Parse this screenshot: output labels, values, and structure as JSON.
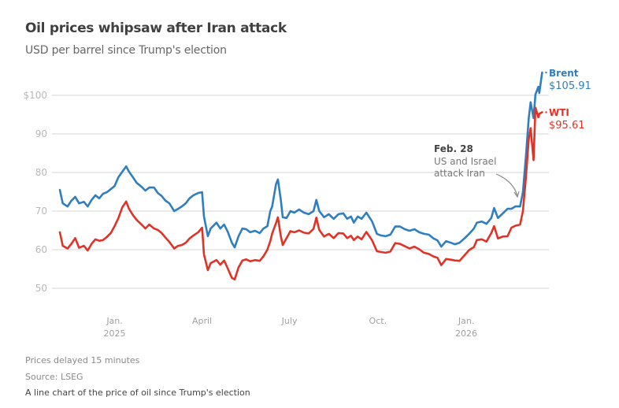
{
  "header": {
    "title": "Oil prices whipsaw after Iran attack",
    "subtitle": "USD per barrel since Trump's election"
  },
  "footer": {
    "note": "Prices delayed 15 minutes",
    "source": "Source: LSEG",
    "alt_text": "A line chart of the price of oil since Trump's election"
  },
  "chart_data": {
    "type": "line",
    "title": "Oil prices whipsaw after Iran attack",
    "subtitle": "USD per barrel since Trump's election",
    "xlabel": "",
    "ylabel": "USD per barrel",
    "ylim": [
      50,
      100
    ],
    "yticks": [
      {
        "value": 100,
        "label": "$100"
      },
      {
        "value": 90,
        "label": "90"
      },
      {
        "value": 80,
        "label": "80"
      },
      {
        "value": 70,
        "label": "70"
      },
      {
        "value": 60,
        "label": "60"
      },
      {
        "value": 50,
        "label": "50"
      }
    ],
    "xrange_days": [
      0,
      490
    ],
    "xticks": [
      {
        "day": 57,
        "label": "Jan.",
        "sublabel": "2025"
      },
      {
        "day": 148,
        "label": "April",
        "sublabel": ""
      },
      {
        "day": 239,
        "label": "July",
        "sublabel": ""
      },
      {
        "day": 331,
        "label": "Oct.",
        "sublabel": ""
      },
      {
        "day": 423,
        "label": "Jan.",
        "sublabel": "2026"
      }
    ],
    "grid": true,
    "legend": "inline-right",
    "series": [
      {
        "name": "Brent",
        "color": "#2f7ebf",
        "last_label": "$105.91",
        "points": [
          [
            0,
            75.5
          ],
          [
            3,
            72
          ],
          [
            8,
            71.2
          ],
          [
            12,
            72.7
          ],
          [
            16,
            73.7
          ],
          [
            20,
            72
          ],
          [
            25,
            72.4
          ],
          [
            29,
            71.2
          ],
          [
            33,
            72.9
          ],
          [
            37,
            74.1
          ],
          [
            41,
            73.3
          ],
          [
            45,
            74.5
          ],
          [
            49,
            74.9
          ],
          [
            53,
            75.7
          ],
          [
            57,
            76.5
          ],
          [
            61,
            78.8
          ],
          [
            65,
            80.2
          ],
          [
            69,
            81.6
          ],
          [
            72,
            80.2
          ],
          [
            76,
            78.8
          ],
          [
            80,
            77.3
          ],
          [
            85,
            76.3
          ],
          [
            89,
            75.3
          ],
          [
            93,
            76.1
          ],
          [
            98,
            76.1
          ],
          [
            102,
            74.7
          ],
          [
            106,
            73.9
          ],
          [
            110,
            72.7
          ],
          [
            114,
            72
          ],
          [
            119,
            70
          ],
          [
            123,
            70.6
          ],
          [
            127,
            71.2
          ],
          [
            131,
            72
          ],
          [
            135,
            73.3
          ],
          [
            139,
            74.1
          ],
          [
            144,
            74.7
          ],
          [
            148,
            74.9
          ],
          [
            150,
            68.6
          ],
          [
            154,
            63.5
          ],
          [
            157,
            65.5
          ],
          [
            163,
            67
          ],
          [
            167,
            65.5
          ],
          [
            171,
            66.5
          ],
          [
            175,
            64.5
          ],
          [
            179,
            61.8
          ],
          [
            182,
            60.6
          ],
          [
            186,
            63.5
          ],
          [
            190,
            65.5
          ],
          [
            194,
            65.3
          ],
          [
            198,
            64.5
          ],
          [
            203,
            64.9
          ],
          [
            208,
            64.3
          ],
          [
            212,
            65.5
          ],
          [
            216,
            66.1
          ],
          [
            219,
            70
          ],
          [
            221,
            71.2
          ],
          [
            225,
            77
          ],
          [
            227,
            78.2
          ],
          [
            230,
            72.9
          ],
          [
            232,
            68.4
          ],
          [
            236,
            68.2
          ],
          [
            240,
            70
          ],
          [
            244,
            69.6
          ],
          [
            249,
            70.4
          ],
          [
            254,
            69.6
          ],
          [
            259,
            69.2
          ],
          [
            264,
            70
          ],
          [
            267,
            72.9
          ],
          [
            270,
            70
          ],
          [
            275,
            68.4
          ],
          [
            280,
            69.2
          ],
          [
            285,
            68
          ],
          [
            290,
            69.2
          ],
          [
            295,
            69.4
          ],
          [
            299,
            68
          ],
          [
            303,
            68.6
          ],
          [
            306,
            67
          ],
          [
            310,
            68.6
          ],
          [
            314,
            68
          ],
          [
            319,
            69.6
          ],
          [
            325,
            67.3
          ],
          [
            330,
            64.1
          ],
          [
            334,
            63.7
          ],
          [
            339,
            63.5
          ],
          [
            344,
            63.9
          ],
          [
            349,
            66
          ],
          [
            354,
            66
          ],
          [
            359,
            65.3
          ],
          [
            364,
            64.9
          ],
          [
            369,
            65.3
          ],
          [
            374,
            64.5
          ],
          [
            379,
            64.1
          ],
          [
            384,
            63.9
          ],
          [
            389,
            62.9
          ],
          [
            393,
            62.4
          ],
          [
            397,
            60.8
          ],
          [
            402,
            62.2
          ],
          [
            407,
            61.8
          ],
          [
            411,
            61.4
          ],
          [
            416,
            61.8
          ],
          [
            421,
            62.9
          ],
          [
            426,
            64.1
          ],
          [
            431,
            65.5
          ],
          [
            434,
            67
          ],
          [
            439,
            67.3
          ],
          [
            444,
            66.7
          ],
          [
            449,
            68.2
          ],
          [
            452,
            70.8
          ],
          [
            456,
            68.2
          ],
          [
            461,
            69.4
          ],
          [
            466,
            70.6
          ],
          [
            470,
            70.6
          ],
          [
            474,
            71.2
          ],
          [
            479,
            71.2
          ],
          [
            482,
            74.9
          ],
          [
            485,
            83.9
          ],
          [
            488,
            94.1
          ],
          [
            490,
            98.2
          ],
          [
            493,
            94.1
          ],
          [
            495,
            100.2
          ],
          [
            498,
            102.2
          ],
          [
            499,
            100.6
          ],
          [
            502,
            105.91
          ]
        ]
      },
      {
        "name": "WTI",
        "color": "#e03327",
        "last_label": "$95.61",
        "points": [
          [
            0,
            64.5
          ],
          [
            3,
            61
          ],
          [
            8,
            60.3
          ],
          [
            12,
            61.5
          ],
          [
            16,
            63
          ],
          [
            20,
            60.5
          ],
          [
            25,
            61
          ],
          [
            29,
            59.8
          ],
          [
            33,
            61.5
          ],
          [
            37,
            62.7
          ],
          [
            41,
            62.3
          ],
          [
            45,
            62.5
          ],
          [
            49,
            63.3
          ],
          [
            53,
            64.3
          ],
          [
            57,
            66.1
          ],
          [
            61,
            68.2
          ],
          [
            65,
            71
          ],
          [
            69,
            72.5
          ],
          [
            72,
            70.6
          ],
          [
            76,
            69
          ],
          [
            80,
            67.7
          ],
          [
            85,
            66.5
          ],
          [
            89,
            65.5
          ],
          [
            93,
            66.5
          ],
          [
            98,
            65.5
          ],
          [
            102,
            65.1
          ],
          [
            106,
            64.3
          ],
          [
            110,
            63.1
          ],
          [
            114,
            62
          ],
          [
            119,
            60.3
          ],
          [
            123,
            61
          ],
          [
            127,
            61.2
          ],
          [
            131,
            61.8
          ],
          [
            135,
            62.9
          ],
          [
            139,
            63.7
          ],
          [
            144,
            64.5
          ],
          [
            148,
            65.7
          ],
          [
            150,
            58.8
          ],
          [
            154,
            54.7
          ],
          [
            157,
            56.5
          ],
          [
            163,
            57.3
          ],
          [
            167,
            56.1
          ],
          [
            171,
            57.2
          ],
          [
            175,
            55
          ],
          [
            179,
            52.7
          ],
          [
            182,
            52.3
          ],
          [
            186,
            55.4
          ],
          [
            190,
            57.2
          ],
          [
            194,
            57.5
          ],
          [
            198,
            57
          ],
          [
            203,
            57.3
          ],
          [
            208,
            57.1
          ],
          [
            212,
            58.3
          ],
          [
            216,
            60
          ],
          [
            219,
            62.2
          ],
          [
            221,
            64.2
          ],
          [
            225,
            66.9
          ],
          [
            227,
            68.4
          ],
          [
            230,
            63.5
          ],
          [
            232,
            61.2
          ],
          [
            236,
            63
          ],
          [
            240,
            64.8
          ],
          [
            244,
            64.5
          ],
          [
            249,
            65
          ],
          [
            254,
            64.4
          ],
          [
            259,
            64.2
          ],
          [
            264,
            65.4
          ],
          [
            267,
            68.3
          ],
          [
            270,
            65.1
          ],
          [
            275,
            63.4
          ],
          [
            280,
            64.1
          ],
          [
            285,
            63
          ],
          [
            290,
            64.3
          ],
          [
            295,
            64.2
          ],
          [
            299,
            63
          ],
          [
            303,
            63.6
          ],
          [
            306,
            62.5
          ],
          [
            310,
            63.4
          ],
          [
            314,
            62.7
          ],
          [
            319,
            64.6
          ],
          [
            325,
            62.4
          ],
          [
            330,
            59.6
          ],
          [
            334,
            59.4
          ],
          [
            339,
            59.2
          ],
          [
            344,
            59.5
          ],
          [
            349,
            61.7
          ],
          [
            354,
            61.5
          ],
          [
            359,
            60.9
          ],
          [
            364,
            60.3
          ],
          [
            369,
            60.8
          ],
          [
            374,
            60.1
          ],
          [
            379,
            59.2
          ],
          [
            384,
            58.9
          ],
          [
            389,
            58.2
          ],
          [
            393,
            57.9
          ],
          [
            397,
            56
          ],
          [
            402,
            57.6
          ],
          [
            407,
            57.4
          ],
          [
            411,
            57.2
          ],
          [
            416,
            57.1
          ],
          [
            421,
            58.5
          ],
          [
            426,
            59.9
          ],
          [
            431,
            60.7
          ],
          [
            434,
            62.5
          ],
          [
            439,
            62.7
          ],
          [
            444,
            62.1
          ],
          [
            449,
            64.3
          ],
          [
            452,
            66.1
          ],
          [
            456,
            62.9
          ],
          [
            461,
            63.4
          ],
          [
            466,
            63.5
          ],
          [
            470,
            65.7
          ],
          [
            474,
            66.2
          ],
          [
            479,
            66.5
          ],
          [
            482,
            70
          ],
          [
            485,
            78.5
          ],
          [
            488,
            88.6
          ],
          [
            490,
            91.5
          ],
          [
            493,
            83.2
          ],
          [
            495,
            96.8
          ],
          [
            498,
            94.3
          ],
          [
            499,
            95.2
          ],
          [
            502,
            95.61
          ]
        ]
      }
    ],
    "annotations": [
      {
        "title": "Feb. 28",
        "text_lines": [
          "US and Israel",
          "attack Iran"
        ],
        "day": 480
      }
    ]
  }
}
